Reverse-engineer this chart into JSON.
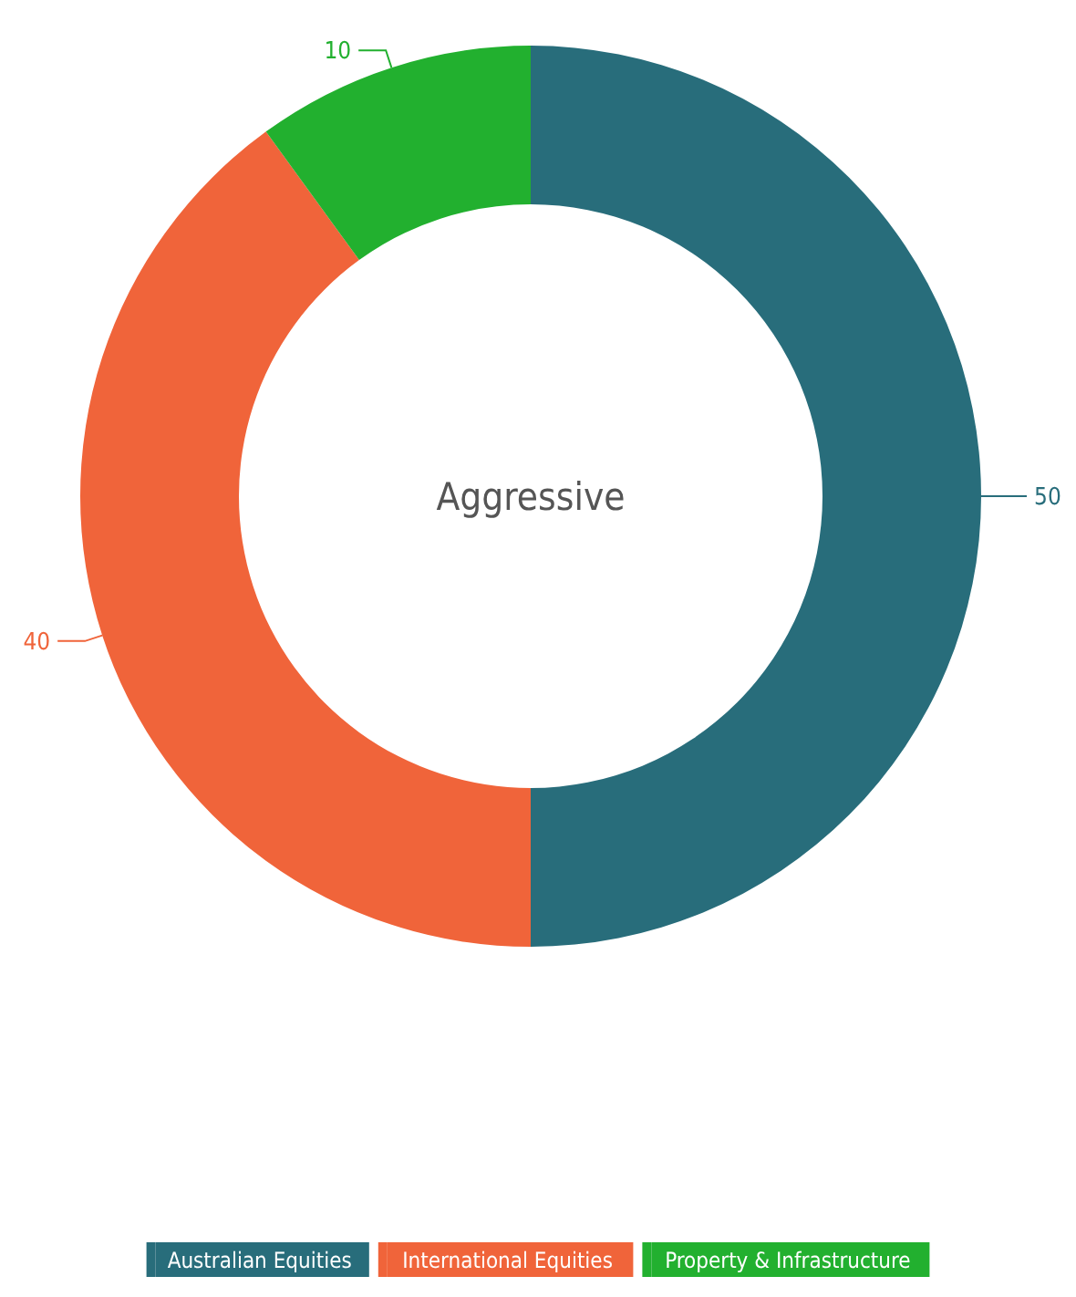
{
  "chart_data": {
    "type": "donut",
    "title": "Aggressive",
    "categories": [
      "Australian Equities",
      "International Equities",
      "Property & Infrastructure"
    ],
    "values": [
      50,
      40,
      10
    ],
    "colors": [
      "#286d7b",
      "#f0643a",
      "#22b02f"
    ],
    "data_labels": true,
    "legend": "bottom"
  }
}
